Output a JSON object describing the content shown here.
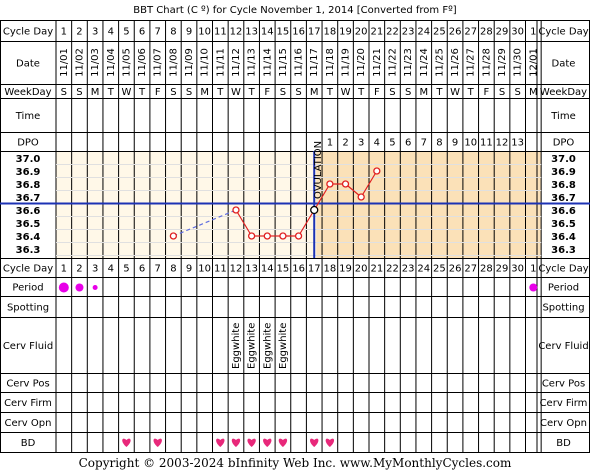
{
  "title": "BBT Chart (C º) for Cycle November 1, 2014  [Converted from Fº]",
  "footer": "Copyright © 2003-2024 bInfinity Web Inc.     www.MyMonthlyCycles.com",
  "row_labels": {
    "cycle_day": "Cycle Day",
    "date": "Date",
    "weekday": "WeekDay",
    "time": "Time",
    "dpo": "DPO",
    "period": "Period",
    "spotting": "Spotting",
    "cerv_fluid": "Cerv Fluid",
    "cerv_pos": "Cerv Pos",
    "cerv_firm": "Cerv Firm",
    "cerv_opn": "Cerv Opn",
    "bd": "BD"
  },
  "cycle_days": [
    "1",
    "2",
    "3",
    "4",
    "5",
    "6",
    "7",
    "8",
    "9",
    "10",
    "11",
    "12",
    "13",
    "14",
    "15",
    "16",
    "17",
    "18",
    "19",
    "20",
    "21",
    "22",
    "23",
    "24",
    "25",
    "26",
    "27",
    "28",
    "29",
    "30",
    "1"
  ],
  "dates": [
    "11/01",
    "11/02",
    "11/03",
    "11/04",
    "11/05",
    "11/06",
    "11/07",
    "11/08",
    "11/09",
    "11/10",
    "11/11",
    "11/12",
    "11/13",
    "11/14",
    "11/15",
    "11/16",
    "11/17",
    "11/18",
    "11/19",
    "11/20",
    "11/21",
    "11/22",
    "11/23",
    "11/24",
    "11/25",
    "11/26",
    "11/27",
    "11/28",
    "11/29",
    "11/30",
    "12/01"
  ],
  "weekdays": [
    "S",
    "S",
    "M",
    "T",
    "W",
    "T",
    "F",
    "S",
    "S",
    "M",
    "T",
    "W",
    "T",
    "F",
    "S",
    "S",
    "M",
    "T",
    "W",
    "T",
    "F",
    "S",
    "S",
    "M",
    "T",
    "W",
    "T",
    "F",
    "S",
    "S",
    "M"
  ],
  "dpo": [
    "",
    "",
    "",
    "",
    "",
    "",
    "",
    "",
    "",
    "",
    "",
    "",
    "",
    "",
    "",
    "",
    "",
    "1",
    "2",
    "3",
    "4",
    "5",
    "6",
    "7",
    "8",
    "9",
    "10",
    "11",
    "12",
    "13",
    ""
  ],
  "ovulation_label": "OVULATION",
  "cerv_fluid_label": "Eggwhite",
  "chart_data": {
    "type": "line",
    "x": [
      8,
      12,
      13,
      14,
      15,
      16,
      17,
      18,
      19,
      20,
      21
    ],
    "y": [
      36.4,
      36.6,
      36.4,
      36.4,
      36.4,
      36.4,
      36.6,
      36.8,
      36.8,
      36.7,
      36.9
    ],
    "connected_from_day": 12,
    "dashed_segment": [
      8,
      12
    ],
    "yticks": [
      "37.0",
      "36.9",
      "36.8",
      "36.7",
      "36.6",
      "36.5",
      "36.4",
      "36.3"
    ],
    "ylim": [
      36.3,
      37.0
    ],
    "coverline": 36.65,
    "ovulation_day": 17,
    "period_days": [
      {
        "day": 1,
        "level": "heavy"
      },
      {
        "day": 2,
        "level": "medium"
      },
      {
        "day": 3,
        "level": "light"
      },
      {
        "day": 31,
        "level": "medium"
      }
    ],
    "cerv_fluid_days": [
      12,
      13,
      14,
      15
    ],
    "bd_days": [
      5,
      7,
      11,
      12,
      13,
      14,
      15,
      17,
      18
    ]
  },
  "colors": {
    "pre_ov_bg": "#fff8e8",
    "post_ov_bg": "#fbe1b8",
    "grid": "#e0e0e0",
    "line": "#e02020",
    "coverline": "#1c32b4",
    "period": "#e800e8",
    "bd": "#e8287a"
  }
}
